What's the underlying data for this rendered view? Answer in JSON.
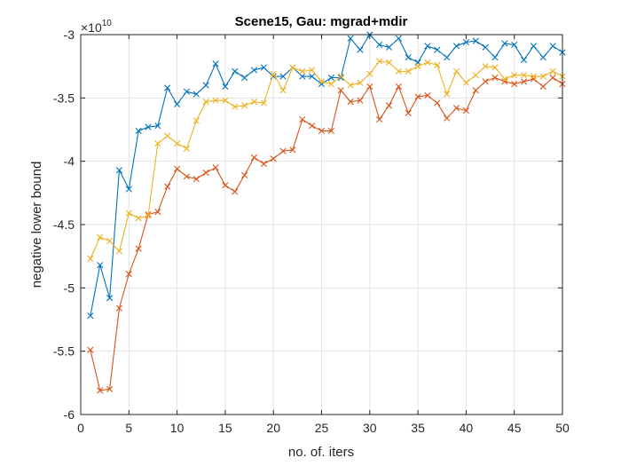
{
  "chart_data": {
    "type": "line",
    "title": "Scene15, Gau: mgrad+mdir",
    "xlabel": "no. of. iters",
    "ylabel": "negative lower bound",
    "y_exponent_base": "×10",
    "y_exponent_power": "10",
    "xlim": [
      0,
      50
    ],
    "ylim": [
      -6,
      -3
    ],
    "xticks": [
      0,
      5,
      10,
      15,
      20,
      25,
      30,
      35,
      40,
      45,
      50
    ],
    "xtick_labels": [
      "0",
      "5",
      "10",
      "15",
      "20",
      "25",
      "30",
      "35",
      "40",
      "45",
      "50"
    ],
    "yticks": [
      -6,
      -5.5,
      -5,
      -4.5,
      -4,
      -3.5,
      -3
    ],
    "ytick_labels": [
      "-6",
      "-5.5",
      "-5",
      "-4.5",
      "-4",
      "-3.5",
      "-3"
    ],
    "grid": true,
    "marker": "x",
    "x": [
      1,
      2,
      3,
      4,
      5,
      6,
      7,
      8,
      9,
      10,
      11,
      12,
      13,
      14,
      15,
      16,
      17,
      18,
      19,
      20,
      21,
      22,
      23,
      24,
      25,
      26,
      27,
      28,
      29,
      30,
      31,
      32,
      33,
      34,
      35,
      36,
      37,
      38,
      39,
      40,
      41,
      42,
      43,
      44,
      45,
      46,
      47,
      48,
      49,
      50
    ],
    "series": [
      {
        "color": "#0072BD",
        "values": [
          -5.22,
          -4.82,
          -5.08,
          -4.07,
          -4.22,
          -3.76,
          -3.73,
          -3.72,
          -3.42,
          -3.55,
          -3.45,
          -3.47,
          -3.4,
          -3.23,
          -3.41,
          -3.29,
          -3.34,
          -3.28,
          -3.26,
          -3.33,
          -3.33,
          -3.26,
          -3.33,
          -3.33,
          -3.39,
          -3.34,
          -3.34,
          -3.03,
          -3.12,
          -3.0,
          -3.08,
          -3.1,
          -3.03,
          -3.18,
          -3.22,
          -3.09,
          -3.12,
          -3.18,
          -3.09,
          -3.06,
          -3.05,
          -3.1,
          -3.18,
          -3.07,
          -3.08,
          -3.2,
          -3.09,
          -3.18,
          -3.09,
          -3.14
        ]
      },
      {
        "color": "#D95319",
        "values": [
          -5.49,
          -5.81,
          -5.8,
          -5.16,
          -4.89,
          -4.69,
          -4.42,
          -4.4,
          -4.2,
          -4.06,
          -4.12,
          -4.14,
          -4.09,
          -4.05,
          -4.19,
          -4.24,
          -4.11,
          -3.97,
          -4.02,
          -3.98,
          -3.92,
          -3.91,
          -3.67,
          -3.72,
          -3.76,
          -3.76,
          -3.44,
          -3.53,
          -3.52,
          -3.41,
          -3.67,
          -3.56,
          -3.41,
          -3.62,
          -3.49,
          -3.48,
          -3.54,
          -3.66,
          -3.58,
          -3.6,
          -3.44,
          -3.37,
          -3.34,
          -3.37,
          -3.39,
          -3.37,
          -3.35,
          -3.41,
          -3.34,
          -3.39
        ]
      },
      {
        "color": "#EDB120",
        "values": [
          -4.77,
          -4.6,
          -4.63,
          -4.71,
          -4.41,
          -4.45,
          -4.43,
          -3.86,
          -3.8,
          -3.86,
          -3.9,
          -3.68,
          -3.53,
          -3.52,
          -3.52,
          -3.57,
          -3.56,
          -3.53,
          -3.54,
          -3.31,
          -3.44,
          -3.26,
          -3.29,
          -3.28,
          -3.37,
          -3.39,
          -3.33,
          -3.4,
          -3.38,
          -3.31,
          -3.21,
          -3.22,
          -3.29,
          -3.29,
          -3.25,
          -3.22,
          -3.24,
          -3.47,
          -3.29,
          -3.38,
          -3.32,
          -3.25,
          -3.26,
          -3.35,
          -3.32,
          -3.32,
          -3.33,
          -3.33,
          -3.29,
          -3.33
        ]
      }
    ]
  }
}
